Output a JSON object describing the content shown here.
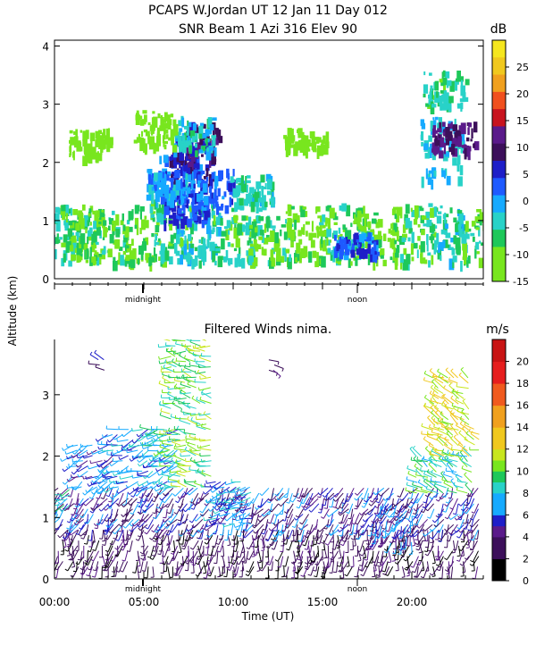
{
  "figure": {
    "title_line1": "PCAPS W.Jordan UT  12 Jan 11 Day 012",
    "title_line2": "SNR Beam 1 Azi 316 Elev 90",
    "shared_ylabel": "Altitude (km)"
  },
  "colors": {
    "scale": [
      "#000000",
      "#3c0f5a",
      "#5a1a8a",
      "#1e1ec8",
      "#1e5aff",
      "#16aaff",
      "#28d2c8",
      "#1ec85a",
      "#78e61e",
      "#c8e61e",
      "#f0d21e",
      "#f0a01e",
      "#f05a1e",
      "#e61e1e",
      "#c81414"
    ]
  },
  "chart_data": [
    {
      "type": "heatmap",
      "title": "SNR Beam 1 Azi 316 Elev 90",
      "ylabel": "Altitude (km)",
      "xlabel": "",
      "ylim": [
        0,
        4.1
      ],
      "xlim": [
        0,
        24
      ],
      "yticks": [
        "0",
        "1",
        "2",
        "3",
        "4"
      ],
      "time_markers": [
        "midnight",
        "noon"
      ],
      "colorbar": {
        "unit": "dB",
        "ticks": [
          "-15",
          "-10",
          "-5",
          "0",
          "5",
          "10",
          "15",
          "20",
          "25"
        ],
        "range": [
          -15,
          30
        ],
        "colors": [
          "#78e61e",
          "#78e61e",
          "#1ec85a",
          "#28d2c8",
          "#16aaff",
          "#1e5aff",
          "#1e1ec8",
          "#3c0f5a",
          "#5a1a8a",
          "#c8141e",
          "#f0501e",
          "#f0a01e",
          "#f0c81e",
          "#f5e61e"
        ]
      },
      "cells": [
        [
          0.5,
          0.3,
          1.0,
          -5
        ],
        [
          1.5,
          0.3,
          1.0,
          -8
        ],
        [
          3.0,
          0.3,
          0.9,
          -6
        ],
        [
          5.0,
          0.3,
          1.0,
          -8
        ],
        [
          6.5,
          0.3,
          1.2,
          -5
        ],
        [
          8.0,
          0.3,
          1.0,
          -3
        ],
        [
          10.0,
          0.3,
          0.8,
          -6
        ],
        [
          12.0,
          0.3,
          0.8,
          -7
        ],
        [
          14.0,
          0.3,
          1.0,
          -8
        ],
        [
          16.0,
          0.3,
          1.0,
          -6
        ],
        [
          18.0,
          0.3,
          1.0,
          -8
        ],
        [
          20.0,
          0.3,
          1.0,
          -7
        ],
        [
          22.0,
          0.3,
          1.0,
          -4
        ],
        [
          23.5,
          0.3,
          0.9,
          -6
        ],
        [
          7.0,
          1.3,
          0.9,
          3
        ],
        [
          7.6,
          1.6,
          0.8,
          7
        ],
        [
          8.0,
          1.9,
          0.8,
          10
        ],
        [
          7.3,
          1.0,
          0.5,
          5
        ],
        [
          8.8,
          1.2,
          0.7,
          2
        ],
        [
          7.8,
          2.2,
          0.6,
          -3
        ],
        [
          6.3,
          1.4,
          0.5,
          0
        ],
        [
          11.0,
          1.2,
          0.6,
          -4
        ],
        [
          21.6,
          1.7,
          1.1,
          -2
        ],
        [
          22.3,
          2.2,
          0.5,
          11
        ],
        [
          21.8,
          3.0,
          0.6,
          -5
        ],
        [
          16.8,
          0.4,
          0.4,
          3
        ],
        [
          2.0,
          2.1,
          0.5,
          -12
        ],
        [
          5.5,
          2.3,
          0.6,
          -13
        ],
        [
          14.0,
          2.2,
          0.4,
          -13
        ]
      ]
    },
    {
      "type": "scatter",
      "title": "Filtered Winds nima.",
      "xlabel": "Time (UT)",
      "ylabel": "Altitude (km)",
      "ylim": [
        0,
        3.9
      ],
      "xlim": [
        0,
        24
      ],
      "xticks": [
        "00:00",
        "05:00",
        "10:00",
        "15:00",
        "20:00"
      ],
      "yticks": [
        "0",
        "1",
        "2",
        "3"
      ],
      "time_markers": [
        "midnight",
        "noon"
      ],
      "colorbar": {
        "unit": "m/s",
        "ticks": [
          "0",
          "2",
          "4",
          "6",
          "8",
          "10",
          "12",
          "14",
          "16",
          "18",
          "20"
        ],
        "range": [
          0,
          22
        ]
      },
      "regions": [
        {
          "t0": 0.2,
          "t1": 24.0,
          "z0": 0.2,
          "z1": 0.8,
          "speed": 3,
          "dir": 190
        },
        {
          "t0": 0.2,
          "t1": 24.0,
          "z0": 0.8,
          "z1": 1.5,
          "speed": 5,
          "dir": 210
        },
        {
          "t0": 0.3,
          "t1": 1.0,
          "z0": 1.2,
          "z1": 1.5,
          "speed": 10,
          "dir": 250
        },
        {
          "t0": 1.0,
          "t1": 3.5,
          "z0": 1.5,
          "z1": 2.2,
          "speed": 6,
          "dir": 240
        },
        {
          "t0": 3.0,
          "t1": 7.0,
          "z0": 1.5,
          "z1": 2.5,
          "speed": 7,
          "dir": 250
        },
        {
          "t0": 6.5,
          "t1": 9.0,
          "z0": 1.5,
          "z1": 3.9,
          "speed": 10,
          "dir": 280
        },
        {
          "t0": 5.5,
          "t1": 6.5,
          "z0": 2.0,
          "z1": 2.5,
          "speed": 9,
          "dir": 260
        },
        {
          "t0": 2.5,
          "t1": 3.0,
          "z0": 3.4,
          "z1": 3.6,
          "speed": 4,
          "dir": 300
        },
        {
          "t0": 12.0,
          "t1": 12.3,
          "z0": 3.4,
          "z1": 3.6,
          "speed": 3,
          "dir": 120
        },
        {
          "t0": 20.3,
          "t1": 23.5,
          "z0": 1.4,
          "z1": 2.0,
          "speed": 9,
          "dir": 300
        },
        {
          "t0": 21.2,
          "t1": 23.2,
          "z0": 2.0,
          "z1": 3.3,
          "speed": 12,
          "dir": 300
        },
        {
          "t0": 23.5,
          "t1": 24.0,
          "z0": 2.1,
          "z1": 2.5,
          "speed": 12,
          "dir": 290
        },
        {
          "t0": 9.0,
          "t1": 11.0,
          "z0": 0.9,
          "z1": 1.6,
          "speed": 7,
          "dir": 250
        },
        {
          "t0": 18.0,
          "t1": 20.0,
          "z0": 0.6,
          "z1": 1.2,
          "speed": 6,
          "dir": 200
        }
      ]
    }
  ]
}
